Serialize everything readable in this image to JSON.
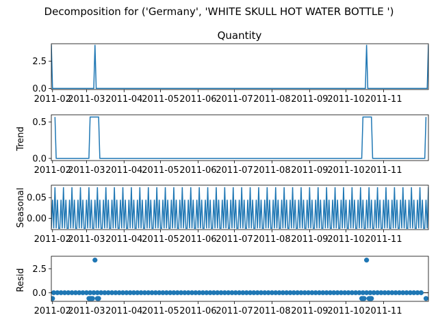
{
  "figure": {
    "suptitle": "Decomposition for ('Germany', 'WHITE SKULL HOT WATER BOTTLE ')"
  },
  "colors": {
    "series": "#1f77b4",
    "axis": "#000000",
    "background": "#ffffff"
  },
  "chart_data": [
    {
      "type": "line",
      "title": "Quantity",
      "ylabel": "",
      "x_range": [
        "2011-01-31",
        "2011-12-08"
      ],
      "ylim": [
        -0.1,
        4.1
      ],
      "yticks": [
        0.0,
        2.5
      ],
      "ytick_labels": [
        "0.0",
        "2.5"
      ],
      "xtick_labels": [
        "2011-02",
        "2011-03",
        "2011-04",
        "2011-05",
        "2011-06",
        "2011-07",
        "2011-08",
        "2011-09",
        "2011-10",
        "2011-11"
      ],
      "points": [
        [
          "2011-01-31",
          4
        ],
        [
          "2011-02-01",
          0
        ],
        [
          "2011-03-07",
          0
        ],
        [
          "2011-03-08",
          4
        ],
        [
          "2011-03-09",
          0
        ],
        [
          "2011-10-17",
          0
        ],
        [
          "2011-10-18",
          4
        ],
        [
          "2011-10-19",
          0
        ],
        [
          "2011-12-07",
          0
        ],
        [
          "2011-12-08",
          4
        ]
      ]
    },
    {
      "type": "line",
      "title": "",
      "ylabel": "Trend",
      "x_range": [
        "2011-01-31",
        "2011-12-08"
      ],
      "ylim": [
        -0.03,
        0.6
      ],
      "yticks": [
        0.0,
        0.5
      ],
      "ytick_labels": [
        "0.0",
        "0.5"
      ],
      "xtick_labels": [
        "2011-02",
        "2011-03",
        "2011-04",
        "2011-05",
        "2011-06",
        "2011-07",
        "2011-08",
        "2011-09",
        "2011-10",
        "2011-11"
      ],
      "points": [
        [
          "2011-02-03",
          0.57
        ],
        [
          "2011-02-04",
          0
        ],
        [
          "2011-03-03",
          0
        ],
        [
          "2011-03-04",
          0.57
        ],
        [
          "2011-03-11",
          0.57
        ],
        [
          "2011-03-12",
          0
        ],
        [
          "2011-10-14",
          0
        ],
        [
          "2011-10-15",
          0.57
        ],
        [
          "2011-10-22",
          0.57
        ],
        [
          "2011-10-23",
          0
        ],
        [
          "2011-12-05",
          0
        ],
        [
          "2011-12-06",
          0.57
        ]
      ]
    },
    {
      "type": "line",
      "title": "",
      "ylabel": "Seasonal",
      "x_range": [
        "2011-01-31",
        "2011-12-08"
      ],
      "ylim": [
        -0.027,
        0.08
      ],
      "yticks": [
        0.0,
        0.05
      ],
      "ytick_labels": [
        "0.00",
        "0.05"
      ],
      "xtick_labels": [
        "2011-02",
        "2011-03",
        "2011-04",
        "2011-05",
        "2011-06",
        "2011-07",
        "2011-08",
        "2011-09",
        "2011-10",
        "2011-11"
      ],
      "periodic": {
        "start": "2011-01-31",
        "end": "2011-12-08",
        "period_days": 7,
        "pattern": [
          -0.024,
          0.045,
          -0.024,
          0.075,
          -0.024,
          0.045,
          -0.024
        ]
      }
    },
    {
      "type": "scatter",
      "title": "",
      "ylabel": "Resid",
      "x_range": [
        "2011-01-31",
        "2011-12-08"
      ],
      "ylim": [
        -0.9,
        3.8
      ],
      "yticks": [
        0.0,
        2.5
      ],
      "ytick_labels": [
        "0.0",
        "2.5"
      ],
      "xtick_labels": [
        "2011-02",
        "2011-03",
        "2011-04",
        "2011-05",
        "2011-06",
        "2011-07",
        "2011-08",
        "2011-09",
        "2011-10",
        "2011-11"
      ],
      "zero_line": true,
      "baseline": {
        "start": "2011-02-02",
        "end": "2011-12-04",
        "step_days": 3,
        "value": 0
      },
      "outliers": [
        [
          "2011-02-01",
          -0.6
        ],
        [
          "2011-03-03",
          -0.6
        ],
        [
          "2011-03-04",
          -0.6
        ],
        [
          "2011-03-05",
          -0.6
        ],
        [
          "2011-03-06",
          -0.6
        ],
        [
          "2011-03-08",
          3.4
        ],
        [
          "2011-03-10",
          -0.6
        ],
        [
          "2011-03-11",
          -0.6
        ],
        [
          "2011-10-14",
          -0.6
        ],
        [
          "2011-10-15",
          -0.6
        ],
        [
          "2011-10-16",
          -0.6
        ],
        [
          "2011-10-18",
          3.4
        ],
        [
          "2011-10-20",
          -0.6
        ],
        [
          "2011-10-21",
          -0.6
        ],
        [
          "2011-10-22",
          -0.6
        ],
        [
          "2011-12-06",
          -0.6
        ]
      ]
    }
  ]
}
